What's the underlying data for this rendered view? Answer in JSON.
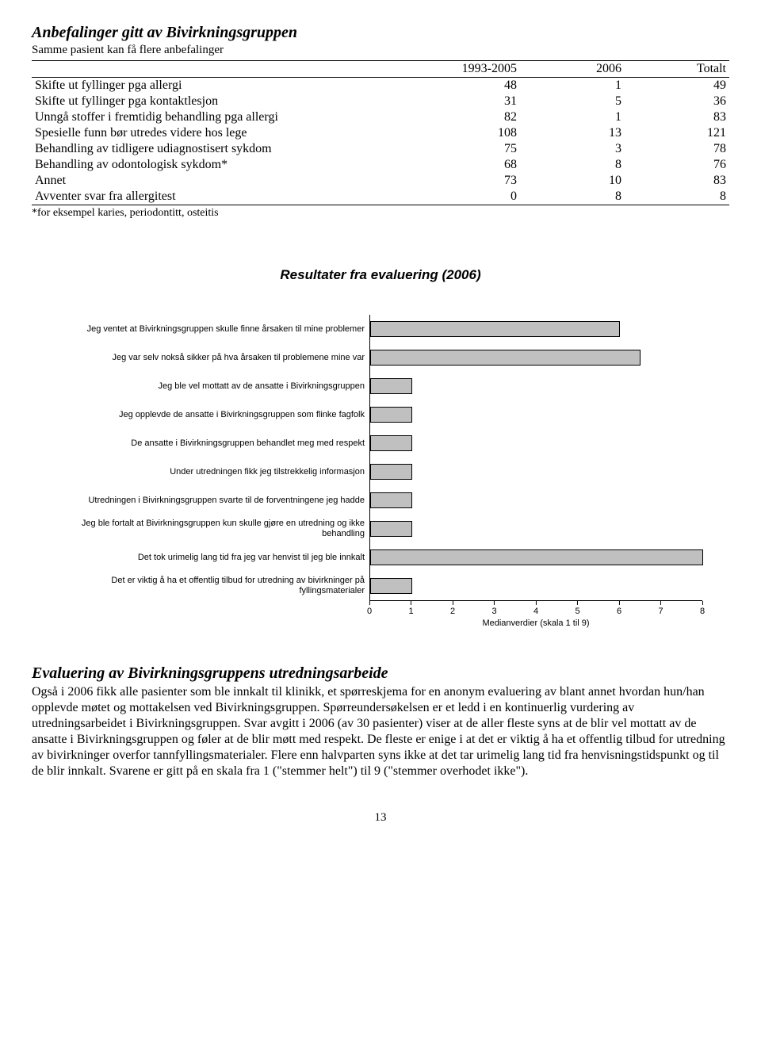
{
  "section1": {
    "heading": "Anbefalinger gitt av Bivirkningsgruppen",
    "subtitle": "Samme pasient kan få flere anbefalinger",
    "columns": [
      "",
      "1993-2005",
      "2006",
      "Totalt"
    ],
    "rows": [
      [
        "Skifte ut fyllinger pga allergi",
        "48",
        "1",
        "49"
      ],
      [
        "Skifte ut fyllinger pga kontaktlesjon",
        "31",
        "5",
        "36"
      ],
      [
        "Unngå stoffer i fremtidig behandling pga allergi",
        "82",
        "1",
        "83"
      ],
      [
        "Spesielle funn bør utredes videre hos lege",
        "108",
        "13",
        "121"
      ],
      [
        "Behandling av tidligere udiagnostisert sykdom",
        "75",
        "3",
        "78"
      ],
      [
        "Behandling av odontologisk sykdom*",
        "68",
        "8",
        "76"
      ],
      [
        "Annet",
        "73",
        "10",
        "83"
      ],
      [
        "Avventer svar fra allergitest",
        "0",
        "8",
        "8"
      ]
    ],
    "footnote": "*for eksempel karies, periodontitt, osteitis"
  },
  "chart": {
    "title": "Resultater fra evaluering (2006)",
    "x_min": 0,
    "x_max": 8,
    "x_tick_step": 1,
    "axis_label": "Medianverdier (skala 1 til 9)",
    "bar_color": "#c0c0c0",
    "bar_border": "#000000",
    "items": [
      {
        "label": "Jeg ventet at Bivirkningsgruppen skulle finne årsaken til mine problemer",
        "value": 6
      },
      {
        "label": "Jeg var selv nokså sikker på hva årsaken til problemene mine var",
        "value": 6.5
      },
      {
        "label": "Jeg ble vel mottatt av de ansatte i Bivirkningsgruppen",
        "value": 1
      },
      {
        "label": "Jeg opplevde de ansatte i Bivirkningsgruppen som flinke fagfolk",
        "value": 1
      },
      {
        "label": "De ansatte i Bivirkningsgruppen behandlet meg med respekt",
        "value": 1
      },
      {
        "label": "Under utredningen fikk jeg tilstrekkelig informasjon",
        "value": 1
      },
      {
        "label": "Utredningen i Bivirkningsgruppen svarte til de forventningene jeg hadde",
        "value": 1
      },
      {
        "label": "Jeg ble fortalt at Bivirkningsgruppen kun skulle gjøre en utredning og ikke behandling",
        "value": 1
      },
      {
        "label": "Det tok urimelig lang tid fra jeg var henvist til jeg ble innkalt",
        "value": 8
      },
      {
        "label": "Det er viktig å ha et offentlig tilbud for utredning av bivirkninger på fyllingsmaterialer",
        "value": 1
      }
    ]
  },
  "section2": {
    "heading": "Evaluering av Bivirkningsgruppens utredningsarbeide",
    "body": "Også i 2006 fikk alle pasienter som ble innkalt til klinikk, et spørreskjema for en anonym evaluering av blant annet hvordan hun/han opplevde møtet og mottakelsen ved Bivirkningsgruppen. Spørreundersøkelsen er et ledd i en kontinuerlig vurdering av utredningsarbeidet i Bivirkningsgruppen. Svar avgitt i 2006 (av 30 pasienter) viser at de aller fleste syns at de blir vel mottatt av de ansatte i Bivirkningsgruppen og føler at de blir møtt med respekt. De fleste er enige i at det er viktig å ha et offentlig tilbud for utredning av bivirkninger overfor tannfyllingsmaterialer. Flere enn halvparten syns ikke at det tar urimelig lang tid fra henvisningstidspunkt og til de blir innkalt. Svarene er gitt på en skala fra 1 (\"stemmer helt\") til 9 (\"stemmer overhodet ikke\")."
  },
  "page_number": "13"
}
